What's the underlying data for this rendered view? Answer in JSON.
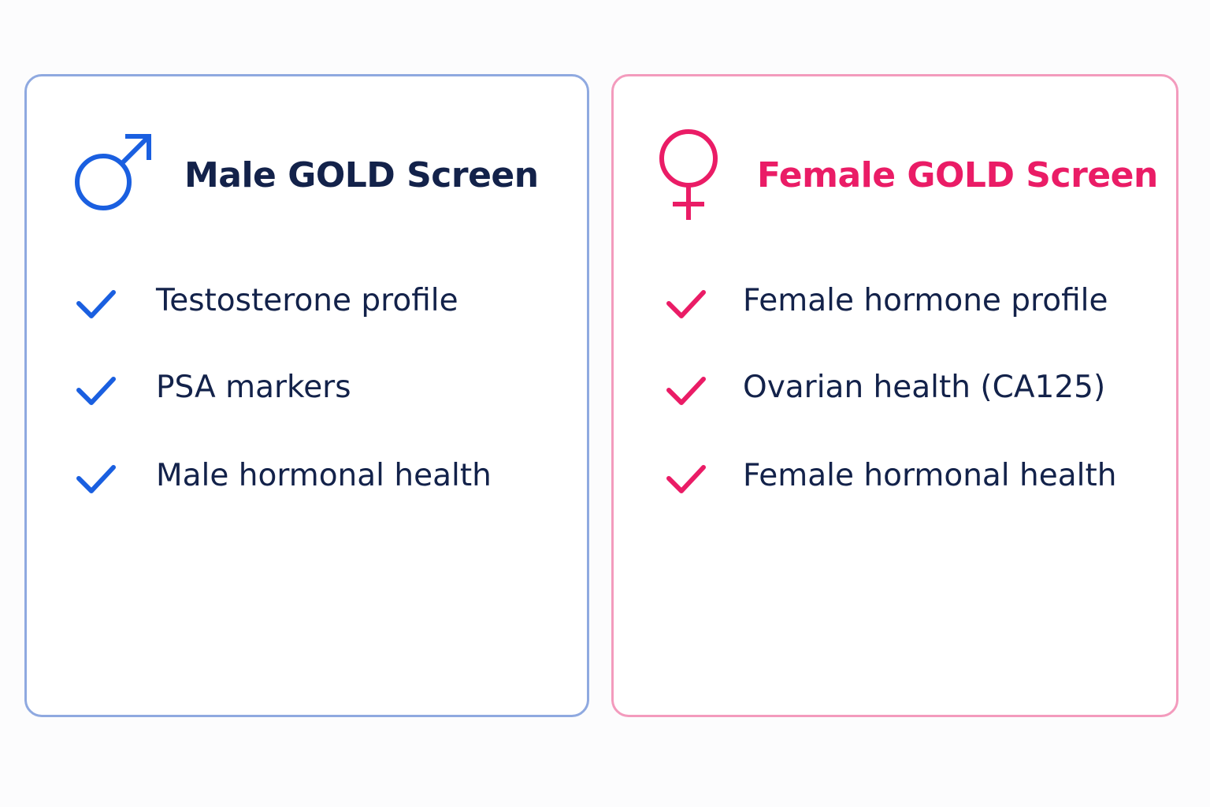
{
  "cards": [
    {
      "title": "Male GOLD Screen",
      "items": [
        "Testosterone profile",
        "PSA markers",
        "Male hormonal health"
      ]
    },
    {
      "title": "Female GOLD Screen",
      "items": [
        "Female hormone profile",
        "Ovarian health (CA125)",
        "Female hormonal health"
      ]
    }
  ]
}
